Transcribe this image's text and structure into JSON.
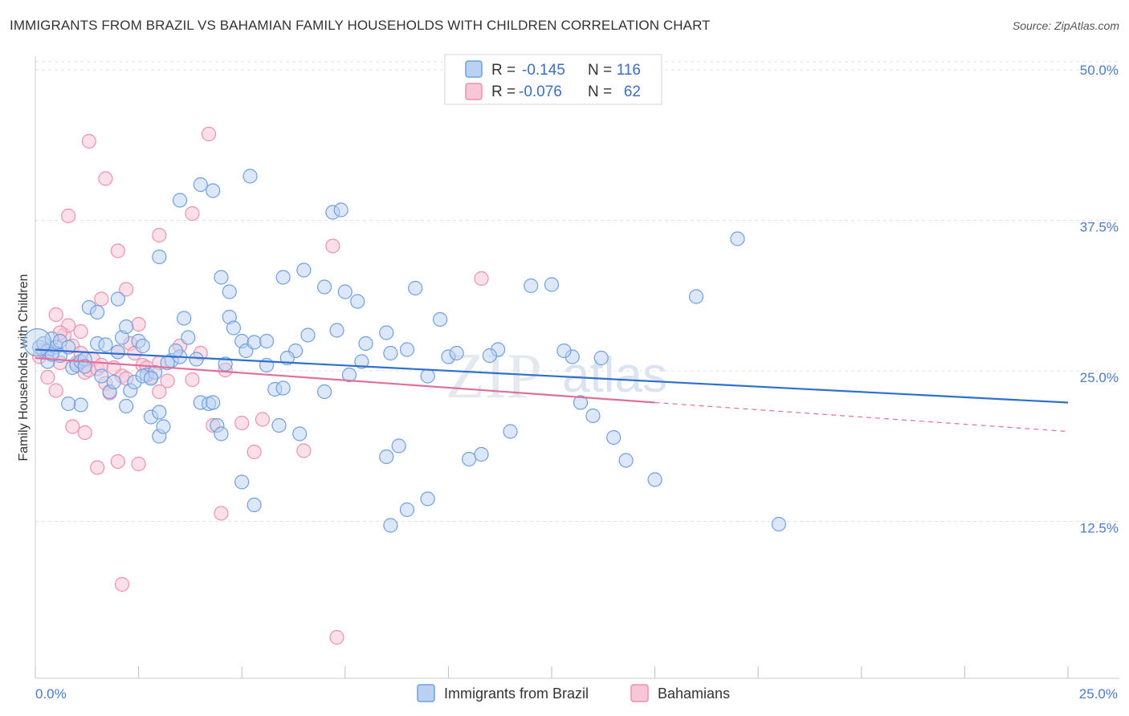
{
  "title": "IMMIGRANTS FROM BRAZIL VS BAHAMIAN FAMILY HOUSEHOLDS WITH CHILDREN CORRELATION CHART",
  "source": "Source: ZipAtlas.com",
  "watermark": {
    "zip": "ZIP",
    "atlas": "atlas"
  },
  "colors": {
    "blue": "#6e9fe0",
    "blue_fill": "#b9d1f3",
    "blue_line": "#2f6fd0",
    "pink": "#ee8fb0",
    "pink_fill": "#f7c6d7",
    "pink_line": "#e0709a",
    "tick": "#4a7cc7"
  },
  "chart_data": {
    "type": "scatter",
    "title": "IMMIGRANTS FROM BRAZIL VS BAHAMIAN FAMILY HOUSEHOLDS WITH CHILDREN CORRELATION CHART",
    "xlabel": "",
    "ylabel": "Family Households with Children",
    "xlim": [
      0,
      25
    ],
    "ylim": [
      0,
      50
    ],
    "x_tick_labels": [
      "0.0%",
      "25.0%"
    ],
    "y_ticks": [
      12.5,
      25.0,
      37.5,
      50.0
    ],
    "y_tick_labels": [
      "12.5%",
      "25.0%",
      "37.5%",
      "50.0%"
    ],
    "legend": [
      {
        "name": "Immigrants from Brazil",
        "r_label": "R =",
        "r": "-0.145",
        "n_label": "N =",
        "n": "116"
      },
      {
        "name": "Bahamians",
        "r_label": "R =",
        "r": "-0.076",
        "n_label": "N =",
        "n": "62"
      }
    ],
    "series": [
      {
        "name": "Immigrants from Brazil",
        "trend": {
          "x0": 0,
          "y0": 27.3,
          "x1": 25,
          "y1": 22.9
        },
        "points": [
          [
            0.1,
            27.5
          ],
          [
            0.2,
            27.8
          ],
          [
            0.3,
            27.2
          ],
          [
            0.4,
            28.2
          ],
          [
            0.5,
            27.5
          ],
          [
            0.6,
            26.8
          ],
          [
            0.6,
            28.0
          ],
          [
            0.8,
            27.5
          ],
          [
            0.9,
            25.8
          ],
          [
            1.0,
            26.0
          ],
          [
            1.1,
            26.3
          ],
          [
            1.2,
            26.5
          ],
          [
            1.3,
            30.8
          ],
          [
            1.5,
            27.8
          ],
          [
            1.6,
            25.1
          ],
          [
            1.8,
            23.8
          ],
          [
            1.9,
            24.6
          ],
          [
            2.0,
            27.1
          ],
          [
            2.1,
            28.3
          ],
          [
            2.2,
            29.2
          ],
          [
            2.3,
            23.9
          ],
          [
            2.4,
            24.6
          ],
          [
            2.5,
            28.0
          ],
          [
            2.6,
            27.6
          ],
          [
            2.7,
            25.2
          ],
          [
            2.8,
            21.7
          ],
          [
            2.9,
            25.4
          ],
          [
            3.0,
            22.1
          ],
          [
            3.0,
            20.1
          ],
          [
            3.1,
            20.9
          ],
          [
            3.3,
            26.4
          ],
          [
            3.5,
            26.7
          ],
          [
            3.6,
            29.9
          ],
          [
            3.7,
            28.3
          ],
          [
            4.0,
            22.9
          ],
          [
            4.2,
            22.8
          ],
          [
            4.3,
            22.9
          ],
          [
            4.4,
            21.0
          ],
          [
            4.5,
            20.3
          ],
          [
            4.6,
            26.1
          ],
          [
            4.7,
            30.0
          ],
          [
            4.8,
            29.1
          ],
          [
            5.0,
            28.0
          ],
          [
            5.1,
            27.2
          ],
          [
            5.3,
            27.9
          ],
          [
            5.6,
            28.0
          ],
          [
            5.8,
            24.0
          ],
          [
            6.0,
            24.1
          ],
          [
            6.3,
            27.2
          ],
          [
            6.6,
            28.5
          ],
          [
            7.0,
            23.8
          ],
          [
            7.3,
            28.9
          ],
          [
            7.6,
            25.2
          ],
          [
            8.0,
            27.8
          ],
          [
            8.5,
            28.7
          ],
          [
            9.0,
            27.3
          ],
          [
            9.2,
            32.4
          ],
          [
            9.5,
            25.1
          ],
          [
            9.8,
            29.8
          ],
          [
            10.0,
            26.7
          ],
          [
            10.5,
            18.2
          ],
          [
            10.8,
            18.6
          ],
          [
            11.2,
            27.3
          ],
          [
            11.5,
            20.5
          ],
          [
            12.0,
            32.6
          ],
          [
            12.5,
            32.7
          ],
          [
            13.0,
            26.7
          ],
          [
            13.2,
            22.9
          ],
          [
            13.5,
            21.8
          ],
          [
            14.0,
            20.0
          ],
          [
            14.3,
            18.1
          ],
          [
            15.0,
            16.5
          ],
          [
            16.0,
            31.7
          ],
          [
            17.0,
            36.5
          ],
          [
            18.0,
            12.8
          ],
          [
            2.0,
            31.5
          ],
          [
            1.5,
            30.4
          ],
          [
            3.0,
            35.0
          ],
          [
            3.5,
            39.7
          ],
          [
            4.0,
            41.0
          ],
          [
            4.3,
            40.5
          ],
          [
            5.2,
            41.7
          ],
          [
            7.2,
            38.7
          ],
          [
            7.4,
            38.9
          ],
          [
            6.0,
            33.3
          ],
          [
            6.5,
            33.9
          ],
          [
            7.0,
            32.5
          ],
          [
            7.5,
            32.1
          ],
          [
            7.8,
            31.3
          ],
          [
            4.5,
            33.3
          ],
          [
            4.7,
            32.1
          ],
          [
            8.5,
            18.4
          ],
          [
            8.8,
            19.3
          ],
          [
            9.0,
            14.0
          ],
          [
            9.5,
            14.9
          ],
          [
            8.6,
            12.7
          ],
          [
            5.0,
            16.3
          ],
          [
            5.3,
            14.4
          ],
          [
            2.2,
            22.6
          ],
          [
            1.1,
            22.7
          ],
          [
            0.8,
            22.8
          ],
          [
            1.7,
            27.7
          ],
          [
            0.3,
            26.3
          ],
          [
            0.4,
            26.9
          ],
          [
            1.2,
            25.9
          ],
          [
            2.6,
            25.1
          ],
          [
            3.4,
            27.2
          ],
          [
            3.9,
            26.5
          ],
          [
            5.6,
            26.0
          ],
          [
            6.1,
            26.6
          ],
          [
            7.9,
            26.3
          ],
          [
            8.6,
            27.0
          ],
          [
            10.2,
            27.0
          ],
          [
            11.0,
            26.8
          ],
          [
            12.8,
            27.2
          ],
          [
            13.7,
            26.6
          ],
          [
            3.2,
            26.2
          ],
          [
            2.8,
            24.9
          ],
          [
            6.4,
            20.3
          ],
          [
            5.9,
            21.0
          ]
        ]
      },
      {
        "name": "Bahamians",
        "trend": {
          "x0": 0,
          "y0": 26.6,
          "x1": 15,
          "y1": 22.9,
          "x_dash_end": 25,
          "y_dash_end": 20.5
        },
        "points": [
          [
            0.1,
            26.7
          ],
          [
            0.2,
            27.2
          ],
          [
            0.3,
            25.0
          ],
          [
            0.4,
            27.4
          ],
          [
            0.5,
            23.9
          ],
          [
            0.6,
            26.2
          ],
          [
            0.7,
            28.5
          ],
          [
            0.8,
            29.3
          ],
          [
            0.9,
            27.6
          ],
          [
            1.0,
            26.2
          ],
          [
            1.1,
            28.8
          ],
          [
            1.2,
            25.4
          ],
          [
            1.3,
            25.6
          ],
          [
            1.4,
            26.5
          ],
          [
            1.5,
            25.7
          ],
          [
            1.6,
            26.0
          ],
          [
            1.7,
            24.5
          ],
          [
            1.8,
            23.7
          ],
          [
            1.9,
            25.8
          ],
          [
            2.0,
            27.1
          ],
          [
            2.1,
            25.1
          ],
          [
            2.2,
            24.9
          ],
          [
            2.3,
            27.8
          ],
          [
            2.4,
            27.0
          ],
          [
            2.5,
            29.4
          ],
          [
            2.6,
            26.0
          ],
          [
            2.7,
            25.8
          ],
          [
            2.8,
            25.0
          ],
          [
            3.0,
            26.2
          ],
          [
            3.2,
            24.7
          ],
          [
            3.5,
            27.6
          ],
          [
            3.8,
            24.8
          ],
          [
            4.0,
            27.0
          ],
          [
            4.3,
            21.0
          ],
          [
            4.6,
            25.6
          ],
          [
            5.0,
            21.2
          ],
          [
            5.3,
            18.8
          ],
          [
            0.9,
            20.9
          ],
          [
            1.2,
            20.4
          ],
          [
            2.5,
            17.8
          ],
          [
            1.5,
            17.5
          ],
          [
            0.8,
            38.4
          ],
          [
            1.3,
            44.6
          ],
          [
            1.7,
            41.5
          ],
          [
            3.0,
            36.8
          ],
          [
            2.0,
            35.5
          ],
          [
            3.8,
            38.6
          ],
          [
            4.2,
            45.2
          ],
          [
            7.2,
            35.9
          ],
          [
            10.8,
            33.2
          ],
          [
            1.6,
            31.5
          ],
          [
            2.2,
            32.3
          ],
          [
            0.5,
            30.2
          ],
          [
            0.6,
            28.7
          ],
          [
            1.1,
            27.0
          ],
          [
            3.0,
            23.8
          ],
          [
            2.0,
            18.0
          ],
          [
            4.5,
            13.7
          ],
          [
            2.1,
            7.8
          ],
          [
            7.3,
            3.4
          ],
          [
            5.5,
            21.5
          ],
          [
            6.5,
            18.9
          ]
        ]
      }
    ]
  }
}
